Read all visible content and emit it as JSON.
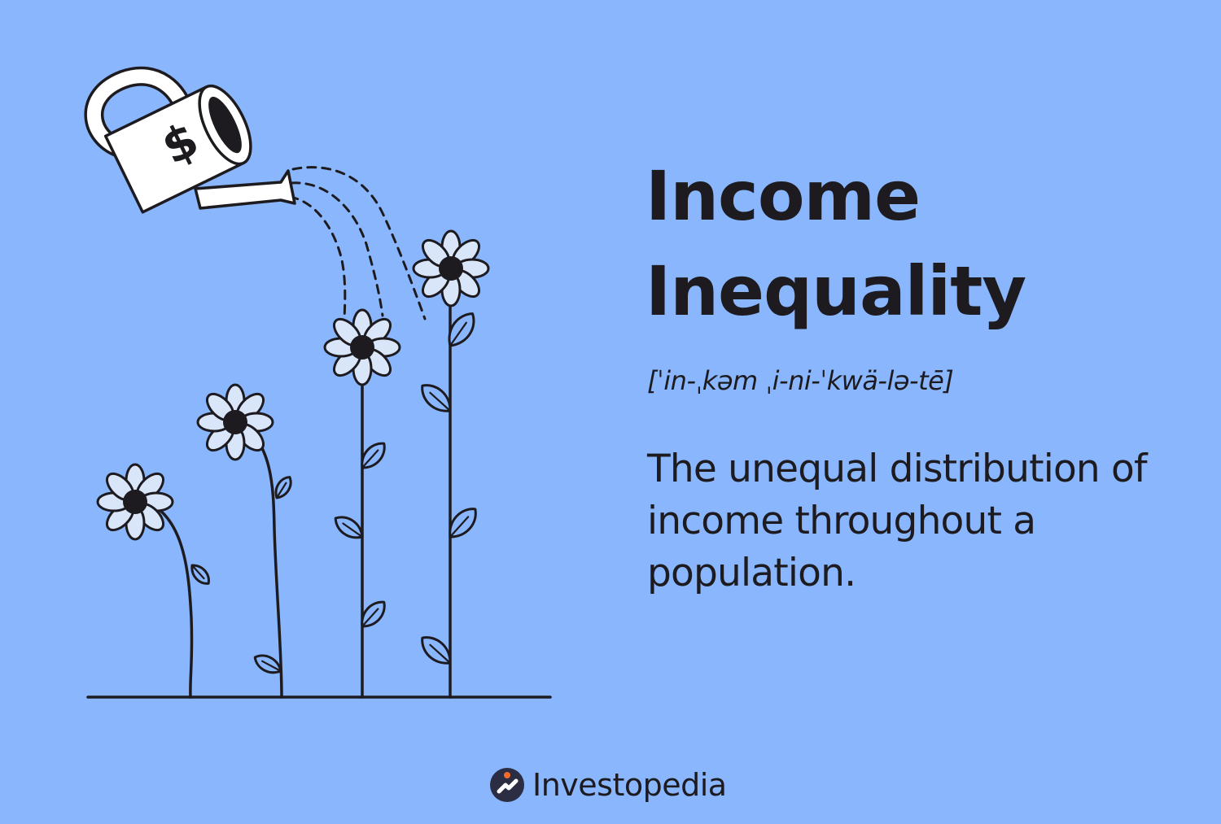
{
  "colors": {
    "background": "#89b6fd",
    "ink": "#1d1b1f",
    "petal": "#d9e5f9",
    "can": "#ffffff",
    "logo_dot": "#f26b2c",
    "logo_circle": "#2b2d42"
  },
  "illustration": {
    "watering_can_symbol": "$",
    "icons": [
      "watering-can-icon",
      "flower-icon",
      "water-drops-icon",
      "ground-line"
    ]
  },
  "term": {
    "title_line1": "Income",
    "title_line2": "Inequality",
    "pronunciation": "[ˈin-ˌkəm ˌi-ni-ˈkwä-lə-tē]",
    "definition": "The unequal distribution of income throughout a population."
  },
  "footer": {
    "brand": "Investopedia"
  }
}
